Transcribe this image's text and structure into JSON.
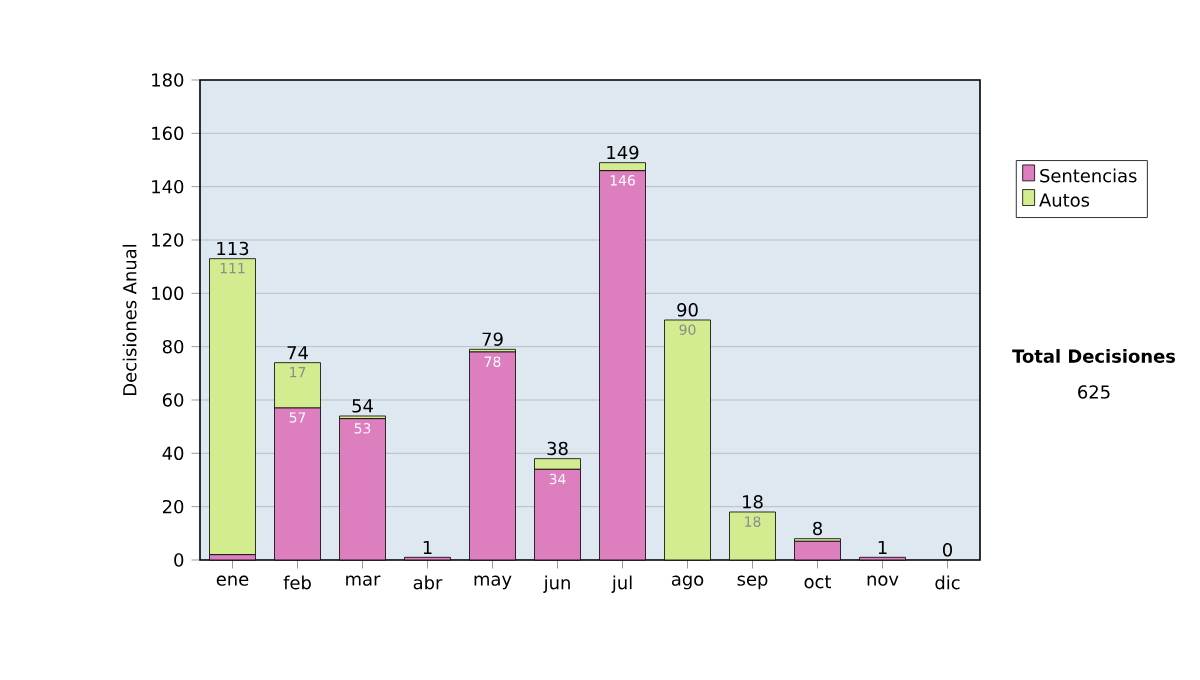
{
  "chart_data": {
    "type": "bar",
    "stacked": true,
    "ylabel": "Decisiones Anual",
    "categories": [
      "ene",
      "feb",
      "mar",
      "abr",
      "may",
      "jun",
      "jul",
      "ago",
      "sep",
      "oct",
      "nov",
      "dic"
    ],
    "series": [
      {
        "name": "Sentencias",
        "color": "#dd7ebf",
        "values": [
          2,
          57,
          53,
          1,
          78,
          34,
          146,
          0,
          0,
          7,
          1,
          0
        ],
        "value_labels": [
          null,
          "57",
          "53",
          null,
          "78",
          "34",
          "146",
          null,
          null,
          null,
          null,
          null
        ]
      },
      {
        "name": "Autos",
        "color": "#d4ec90",
        "values": [
          111,
          17,
          1,
          0,
          1,
          4,
          3,
          90,
          18,
          1,
          0,
          0
        ],
        "value_labels": [
          "111",
          "17",
          null,
          null,
          null,
          null,
          null,
          "90",
          "18",
          null,
          null,
          null
        ]
      }
    ],
    "totals": [
      "113",
      "74",
      "54",
      "1",
      "79",
      "38",
      "149",
      "90",
      "18",
      "8",
      "1",
      "0"
    ],
    "ylim": [
      0,
      180
    ],
    "yticks": [
      0,
      20,
      40,
      60,
      80,
      100,
      120,
      140,
      160,
      180
    ],
    "grid": "y",
    "legend": "right",
    "annotations": [
      "Total Decisiones",
      "625"
    ]
  }
}
